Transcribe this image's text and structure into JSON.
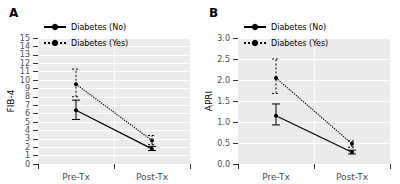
{
  "chart_data": [
    {
      "type": "line",
      "title": "A",
      "categories": [
        "Pre-Tx",
        "Post-Tx"
      ],
      "ylabel": "FIB-4",
      "ylim": [
        0,
        15
      ],
      "yticks": [
        0,
        1,
        2,
        3,
        4,
        5,
        6,
        7,
        8,
        9,
        10,
        11,
        12,
        13,
        14,
        15
      ],
      "grid": true,
      "legend": "top",
      "series": [
        {
          "name": "Diabetes (No)",
          "color": "#000000",
          "line_style": "solid",
          "marker": "circle",
          "values": [
            6.4,
            1.8
          ],
          "lower": [
            5.3,
            1.6
          ],
          "upper": [
            7.6,
            2.1
          ]
        },
        {
          "name": "Diabetes (Yes)",
          "color": "#000000",
          "line_style": "dotted",
          "marker": "circle",
          "values": [
            9.5,
            2.8
          ],
          "lower": [
            8.0,
            2.3
          ],
          "upper": [
            11.3,
            3.4
          ]
        }
      ]
    },
    {
      "type": "line",
      "title": "B",
      "categories": [
        "Pre-Tx",
        "Post-Tx"
      ],
      "ylabel": "APRI",
      "ylim": [
        0,
        3
      ],
      "yticks": [
        {
          "value": 0,
          "label": "0.0"
        },
        0.5,
        {
          "value": 1,
          "label": "1.0"
        },
        1.5,
        {
          "value": 2,
          "label": "2.0"
        },
        2.5,
        {
          "value": 3,
          "label": "3.0"
        }
      ],
      "grid": true,
      "legend": "top",
      "series": [
        {
          "name": "Diabetes (No)",
          "color": "#000000",
          "line_style": "solid",
          "marker": "circle",
          "values": [
            1.15,
            0.28
          ],
          "lower": [
            0.93,
            0.24
          ],
          "upper": [
            1.43,
            0.33
          ]
        },
        {
          "name": "Diabetes (Yes)",
          "color": "#000000",
          "line_style": "dotted",
          "marker": "circle",
          "values": [
            2.05,
            0.48
          ],
          "lower": [
            1.68,
            0.4
          ],
          "upper": [
            2.5,
            0.55
          ]
        }
      ]
    }
  ]
}
